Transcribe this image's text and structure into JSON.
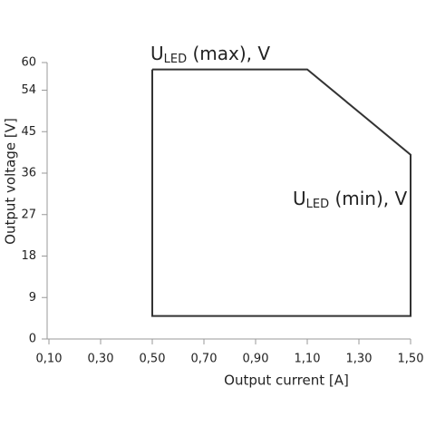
{
  "chart_data": {
    "type": "line",
    "x_label": "Output current [A]",
    "y_label": "Output voltage [V]",
    "annotations": [
      {
        "text": "U",
        "sub": "LED",
        "rest": " (max), V"
      },
      {
        "text": "U",
        "sub": "LED",
        "rest": " (min), V"
      }
    ],
    "x": [
      0.5,
      1.1,
      1.5,
      1.5,
      0.5,
      0.5
    ],
    "values": [
      58.5,
      58.5,
      40,
      5,
      5,
      58.5
    ],
    "color": "#333333",
    "xlim": [
      0.1,
      1.5
    ],
    "xticks": [
      {
        "value": 0.1,
        "label": "0,10"
      },
      {
        "value": 0.3,
        "label": "0,30"
      },
      {
        "value": 0.5,
        "label": "0,50"
      },
      {
        "value": 0.7,
        "label": "0,70"
      },
      {
        "value": 0.9,
        "label": "0,90"
      },
      {
        "value": 1.1,
        "label": "1,10"
      },
      {
        "value": 1.3,
        "label": "1,30"
      },
      {
        "value": 1.5,
        "label": "1,50"
      }
    ],
    "ylim": [
      0,
      60
    ],
    "yticks": [
      0,
      9,
      18,
      27,
      36,
      45,
      54,
      60
    ]
  }
}
